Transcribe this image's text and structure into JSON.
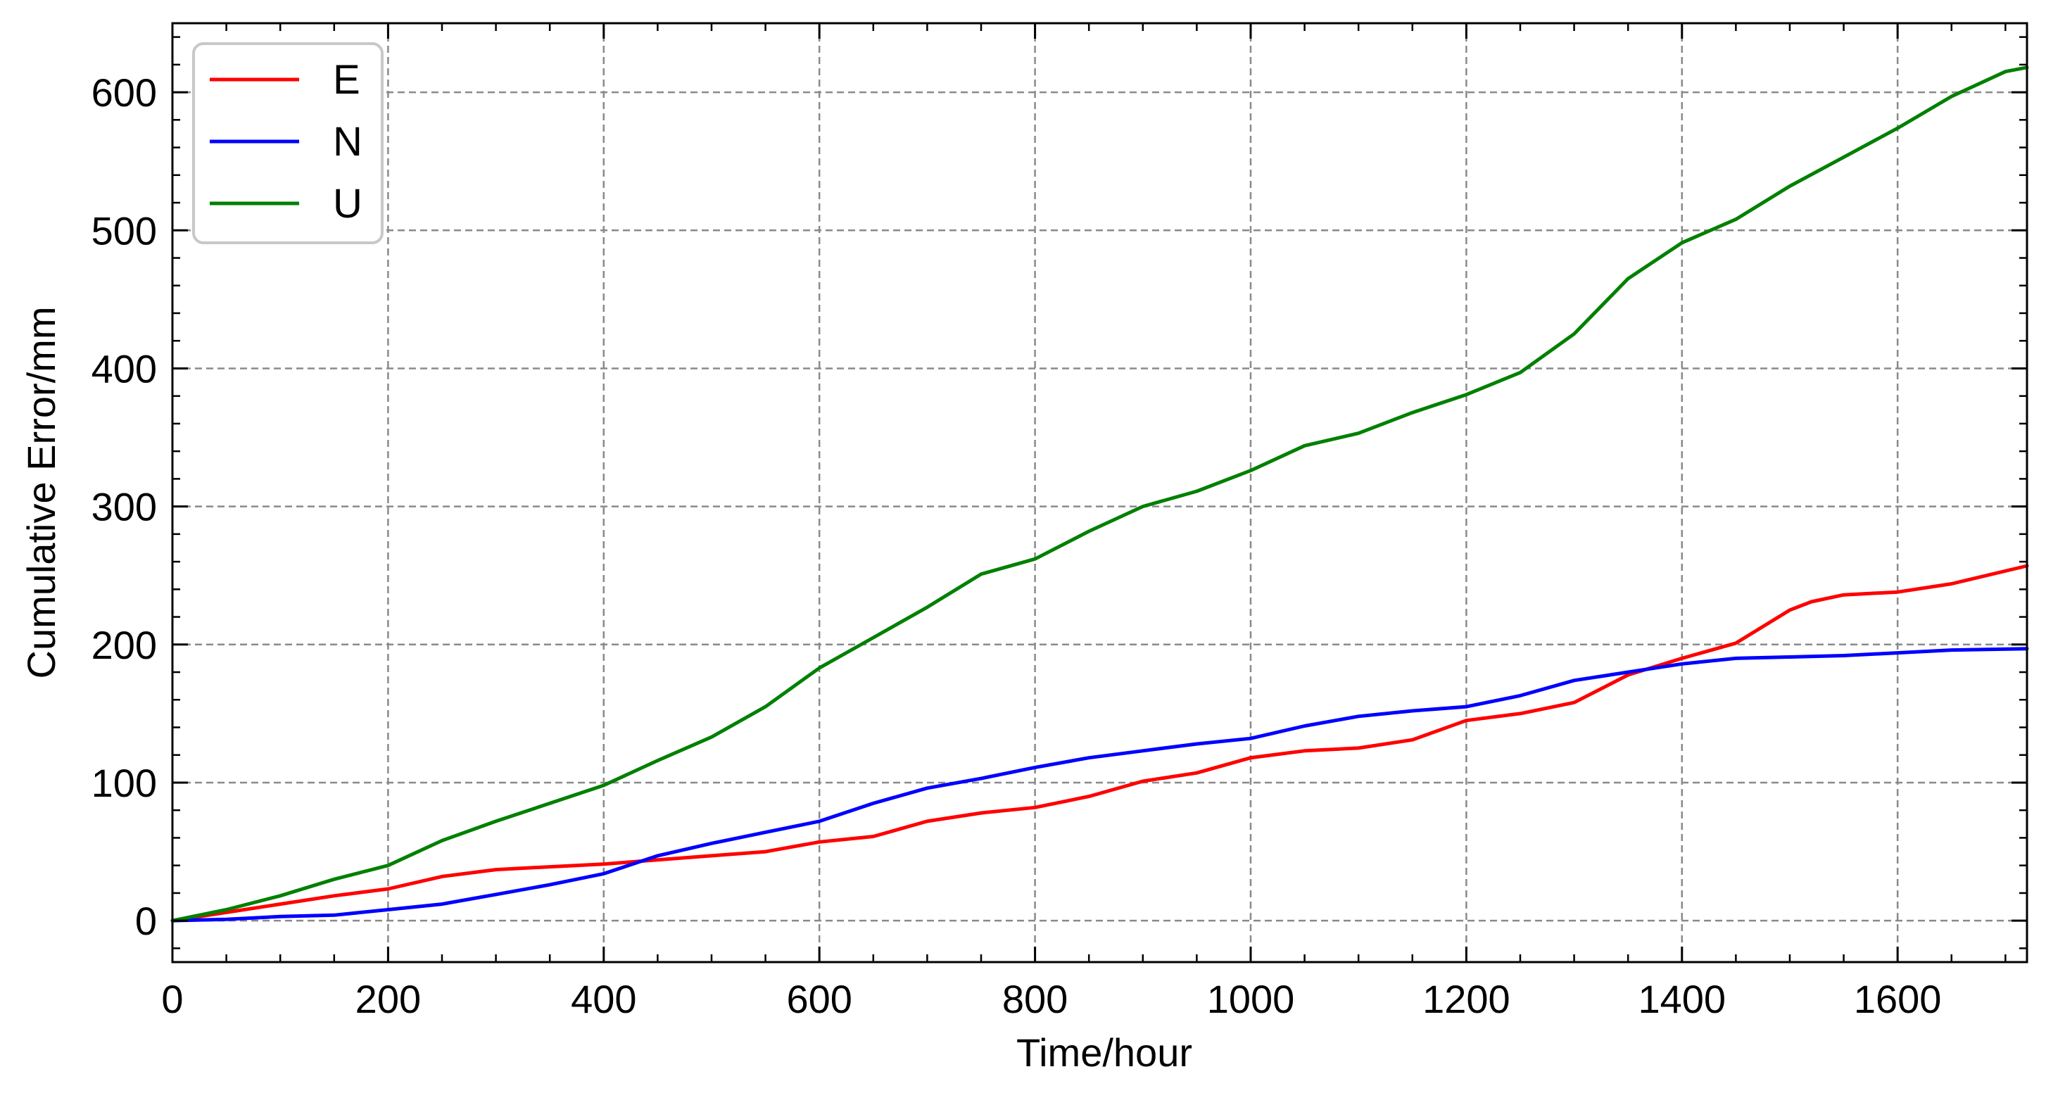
{
  "chart_data": {
    "type": "line",
    "title": "",
    "xlabel": "Time/hour",
    "ylabel": "Cumulative Error/mm",
    "xlim": [
      0,
      1720
    ],
    "ylim": [
      -30,
      650
    ],
    "xticks": [
      0,
      200,
      400,
      600,
      800,
      1000,
      1200,
      1400,
      1600
    ],
    "yticks": [
      0,
      100,
      200,
      300,
      400,
      500,
      600
    ],
    "grid": true,
    "grid_style": "dashed",
    "legend_position": "top-left",
    "series": [
      {
        "name": "E",
        "color": "#ff0000",
        "x": [
          0,
          50,
          100,
          150,
          200,
          250,
          300,
          350,
          400,
          450,
          500,
          550,
          600,
          650,
          700,
          750,
          800,
          850,
          900,
          950,
          1000,
          1050,
          1100,
          1150,
          1200,
          1250,
          1300,
          1350,
          1400,
          1450,
          1500,
          1520,
          1550,
          1600,
          1650,
          1720
        ],
        "y": [
          0,
          6,
          12,
          18,
          23,
          32,
          37,
          39,
          41,
          44,
          47,
          50,
          57,
          61,
          72,
          78,
          82,
          90,
          101,
          107,
          118,
          123,
          125,
          131,
          145,
          150,
          158,
          178,
          190,
          201,
          225,
          231,
          236,
          238,
          244,
          257
        ]
      },
      {
        "name": "N",
        "color": "#0000ff",
        "x": [
          0,
          50,
          100,
          150,
          200,
          250,
          300,
          350,
          400,
          450,
          500,
          550,
          600,
          650,
          700,
          750,
          800,
          850,
          900,
          950,
          1000,
          1050,
          1100,
          1150,
          1200,
          1250,
          1300,
          1350,
          1400,
          1450,
          1500,
          1550,
          1600,
          1650,
          1720
        ],
        "y": [
          0,
          1,
          3,
          4,
          8,
          12,
          19,
          26,
          34,
          47,
          56,
          64,
          72,
          85,
          96,
          103,
          111,
          118,
          123,
          128,
          132,
          141,
          148,
          152,
          155,
          163,
          174,
          180,
          186,
          190,
          191,
          192,
          194,
          196,
          197
        ]
      },
      {
        "name": "U",
        "color": "#008000",
        "x": [
          0,
          50,
          100,
          150,
          200,
          250,
          300,
          350,
          400,
          450,
          500,
          550,
          600,
          650,
          700,
          750,
          800,
          850,
          900,
          950,
          1000,
          1050,
          1100,
          1150,
          1200,
          1250,
          1300,
          1350,
          1400,
          1450,
          1500,
          1550,
          1600,
          1650,
          1700,
          1720
        ],
        "y": [
          0,
          8,
          18,
          30,
          40,
          58,
          72,
          85,
          98,
          116,
          133,
          155,
          183,
          205,
          227,
          251,
          262,
          282,
          300,
          311,
          326,
          344,
          353,
          368,
          381,
          397,
          425,
          465,
          491,
          508,
          532,
          553,
          574,
          597,
          615,
          618
        ]
      }
    ]
  }
}
